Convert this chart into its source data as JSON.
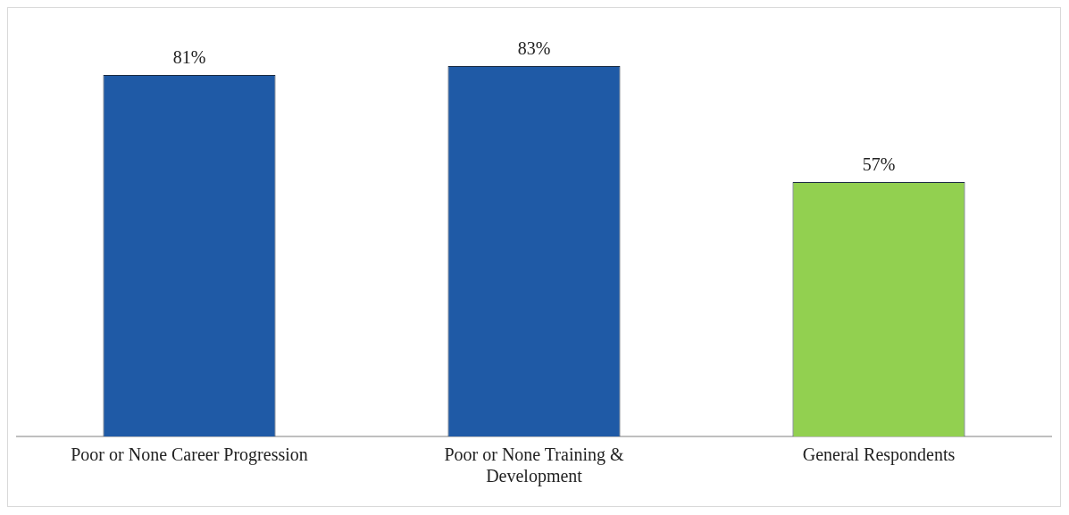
{
  "chart_data": {
    "type": "bar",
    "categories": [
      "Poor or None Career Progression",
      "Poor or None Training & Development",
      "General Respondents"
    ],
    "values": [
      81,
      83,
      57
    ],
    "colors": [
      "#1f5aa6",
      "#1f5aa6",
      "#92d050"
    ],
    "value_labels": [
      "81%",
      "83%",
      "57%"
    ],
    "tick_labels": "x",
    "grid": false,
    "legend": false
  }
}
